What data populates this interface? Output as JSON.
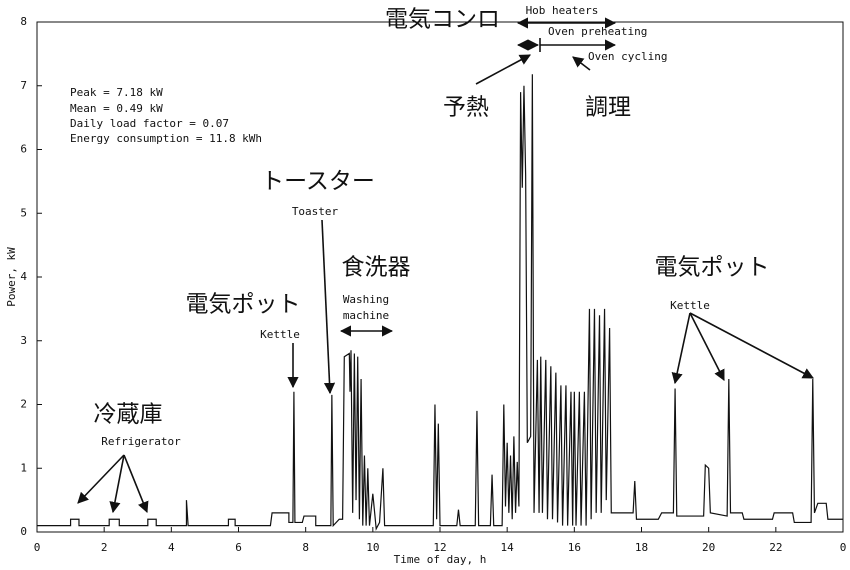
{
  "chart_data": {
    "type": "line",
    "x_label": "Time of day, h",
    "y_label": "Power, kW",
    "xlim": [
      0,
      24
    ],
    "ylim": [
      0,
      8
    ],
    "xticks": [
      0,
      2,
      4,
      6,
      8,
      10,
      12,
      14,
      16,
      18,
      20,
      22,
      {
        "value": 24,
        "label": "0"
      }
    ],
    "yticks": [
      0,
      1,
      2,
      3,
      4,
      5,
      6,
      7,
      8
    ],
    "color": "#111111",
    "x": [
      0,
      1.0,
      1.0,
      1.25,
      1.25,
      2.15,
      2.15,
      2.45,
      2.45,
      3.3,
      3.3,
      3.55,
      3.55,
      4.45,
      4.45,
      4.5,
      5.7,
      5.7,
      5.9,
      5.9,
      6.95,
      7.0,
      7.5,
      7.5,
      7.62,
      7.65,
      7.68,
      7.9,
      7.95,
      8.3,
      8.3,
      8.75,
      8.78,
      8.82,
      9.0,
      9.1,
      9.15,
      9.3,
      9.32,
      9.35,
      9.4,
      9.45,
      9.5,
      9.55,
      9.6,
      9.65,
      9.7,
      9.75,
      9.8,
      9.85,
      9.9,
      10.0,
      10.1,
      10.2,
      10.3,
      10.35,
      10.5,
      11.8,
      11.85,
      11.9,
      11.95,
      12.0,
      12.5,
      12.55,
      12.6,
      13.05,
      13.1,
      13.15,
      13.5,
      13.55,
      13.6,
      13.85,
      13.9,
      13.95,
      14.0,
      14.05,
      14.1,
      14.15,
      14.2,
      14.25,
      14.3,
      14.35,
      14.4,
      14.45,
      14.5,
      14.55,
      14.6,
      14.7,
      14.75,
      14.8,
      14.9,
      14.95,
      15.0,
      15.05,
      15.15,
      15.2,
      15.3,
      15.35,
      15.45,
      15.5,
      15.6,
      15.65,
      15.75,
      15.8,
      15.9,
      15.95,
      16.0,
      16.05,
      16.15,
      16.2,
      16.3,
      16.35,
      16.45,
      16.5,
      16.6,
      16.65,
      16.75,
      16.8,
      16.9,
      16.95,
      17.05,
      17.1,
      17.2,
      17.75,
      17.8,
      17.85,
      18.5,
      18.6,
      18.95,
      19.0,
      19.05,
      19.85,
      19.9,
      20.0,
      20.05,
      20.55,
      20.6,
      20.65,
      21.0,
      21.05,
      21.9,
      21.95,
      22.5,
      22.55,
      23.05,
      23.1,
      23.15,
      23.25,
      23.5,
      23.55,
      24
    ],
    "values": [
      0.1,
      0.1,
      0.2,
      0.2,
      0.1,
      0.1,
      0.2,
      0.2,
      0.1,
      0.1,
      0.2,
      0.2,
      0.1,
      0.1,
      0.5,
      0.1,
      0.1,
      0.2,
      0.2,
      0.1,
      0.1,
      0.3,
      0.3,
      0.15,
      0.15,
      2.2,
      0.15,
      0.15,
      0.25,
      0.25,
      0.1,
      0.1,
      2.15,
      0.1,
      0.2,
      0.2,
      2.75,
      2.8,
      2.2,
      2.85,
      0.3,
      2.8,
      0.5,
      2.75,
      0.2,
      2.4,
      0.1,
      1.2,
      0.1,
      1.0,
      0.1,
      0.6,
      0.05,
      0.15,
      1.0,
      0.1,
      0.1,
      0.1,
      2.0,
      0.2,
      1.7,
      0.1,
      0.1,
      0.35,
      0.1,
      0.1,
      1.9,
      0.1,
      0.1,
      0.9,
      0.1,
      0.1,
      2.0,
      0.4,
      1.4,
      0.3,
      1.2,
      0.2,
      1.5,
      0.3,
      1.1,
      0.4,
      6.9,
      5.4,
      7.0,
      5.6,
      1.4,
      1.5,
      7.18,
      0.3,
      2.7,
      0.3,
      2.75,
      0.3,
      2.7,
      0.2,
      2.6,
      0.2,
      2.5,
      0.15,
      2.3,
      0.1,
      2.3,
      0.1,
      2.2,
      0.1,
      2.2,
      0.1,
      2.2,
      0.1,
      2.2,
      0.1,
      3.5,
      0.2,
      3.5,
      0.3,
      3.4,
      0.3,
      3.5,
      0.5,
      3.2,
      0.3,
      0.3,
      0.3,
      0.8,
      0.2,
      0.2,
      0.3,
      0.3,
      2.25,
      0.25,
      0.25,
      1.05,
      1.0,
      0.3,
      0.25,
      2.4,
      0.3,
      0.3,
      0.2,
      0.2,
      0.3,
      0.3,
      0.15,
      0.15,
      2.4,
      0.3,
      0.45,
      0.45,
      0.2,
      0.2
    ],
    "annotations": [
      "Peak = 7.18 kW",
      "Mean = 0.49 kW",
      "Daily load factor = 0.07",
      "Energy consumption = 11.8 kWh",
      "電気コンロ",
      "Hob heaters",
      "Oven preheating",
      "Oven cycling",
      "予熱",
      "調理",
      "トースター",
      "Toaster",
      "食洗器",
      "Washing",
      "machine",
      "電気ポット",
      "Kettle",
      "電気ポット",
      "Kettle",
      "冷蔵庫",
      "Refrigerator"
    ]
  }
}
